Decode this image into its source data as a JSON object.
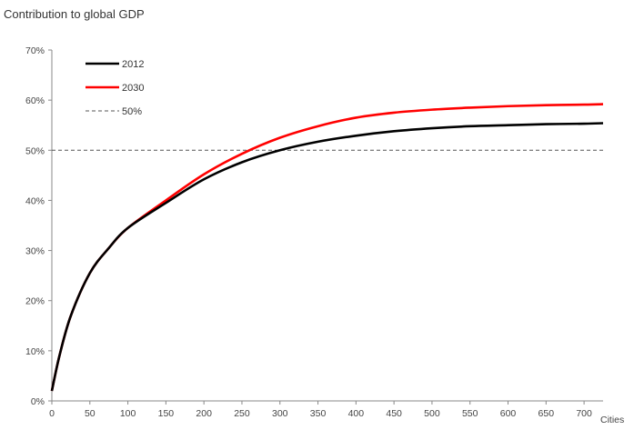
{
  "chart_data": {
    "type": "line",
    "title": "Contribution to global GDP",
    "xlabel": "Cities",
    "ylabel": "",
    "xlim": [
      0,
      725
    ],
    "ylim": [
      0,
      70
    ],
    "x_ticks": [
      0,
      50,
      100,
      150,
      200,
      250,
      300,
      350,
      400,
      450,
      500,
      550,
      600,
      650,
      700
    ],
    "y_ticks": [
      0,
      10,
      20,
      30,
      40,
      50,
      60,
      70
    ],
    "y_tick_labels": [
      "0%",
      "10%",
      "20%",
      "30%",
      "40%",
      "50%",
      "60%",
      "70%"
    ],
    "grid": false,
    "legend_position": "top-left",
    "x": [
      0,
      10,
      25,
      50,
      75,
      100,
      150,
      200,
      250,
      300,
      350,
      400,
      450,
      500,
      550,
      600,
      650,
      700,
      725
    ],
    "series": [
      {
        "name": "2012",
        "color": "#000000",
        "style": "solid",
        "values": [
          2,
          9,
          17,
          25.5,
          30.5,
          34.5,
          39.5,
          44.2,
          47.6,
          50,
          51.7,
          52.9,
          53.8,
          54.4,
          54.8,
          55,
          55.2,
          55.3,
          55.4
        ]
      },
      {
        "name": "2030",
        "color": "#ff0000",
        "style": "solid",
        "values": [
          2,
          9,
          17,
          25.5,
          30.5,
          34.5,
          40,
          45.2,
          49.3,
          52.5,
          54.8,
          56.5,
          57.5,
          58.1,
          58.5,
          58.8,
          59,
          59.1,
          59.2
        ]
      },
      {
        "name": "50%",
        "color": "#555555",
        "style": "dashed",
        "values": [
          50,
          50,
          50,
          50,
          50,
          50,
          50,
          50,
          50,
          50,
          50,
          50,
          50,
          50,
          50,
          50,
          50,
          50,
          50
        ]
      }
    ]
  }
}
